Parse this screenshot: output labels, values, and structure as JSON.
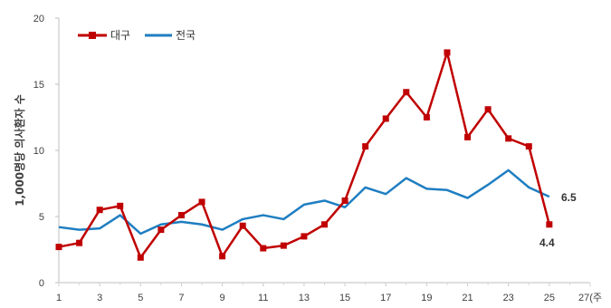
{
  "chart_data": {
    "type": "line",
    "ylabel": "1,000명당 의사환자 수",
    "xlabel": "",
    "x": [
      1,
      2,
      3,
      4,
      5,
      6,
      7,
      8,
      9,
      10,
      11,
      12,
      13,
      14,
      15,
      16,
      17,
      18,
      19,
      20,
      21,
      22,
      23,
      24,
      25
    ],
    "x_ticks": [
      "1",
      "3",
      "5",
      "7",
      "9",
      "11",
      "13",
      "15",
      "17",
      "19",
      "21",
      "23",
      "25",
      "27(주"
    ],
    "xlim": [
      1,
      27
    ],
    "ylim": [
      0,
      20
    ],
    "y_ticks": [
      "0",
      "5",
      "10",
      "15",
      "20"
    ],
    "grid": false,
    "legend": "top-left",
    "series": [
      {
        "name": "대구",
        "color": "#C00000",
        "marker": "square",
        "values": [
          2.7,
          3.0,
          5.5,
          5.8,
          1.9,
          4.0,
          5.1,
          6.1,
          2.0,
          4.3,
          2.6,
          2.8,
          3.5,
          4.4,
          6.2,
          10.3,
          12.4,
          14.4,
          12.5,
          17.4,
          11.0,
          13.1,
          10.9,
          10.3,
          4.4
        ]
      },
      {
        "name": "전국",
        "color": "#1F7EC1",
        "marker": "none",
        "values": [
          4.2,
          4.0,
          4.1,
          5.1,
          3.7,
          4.4,
          4.6,
          4.4,
          4.0,
          4.8,
          5.1,
          4.8,
          5.9,
          6.2,
          5.7,
          7.2,
          6.7,
          7.9,
          7.1,
          7.0,
          6.4,
          7.4,
          8.5,
          7.2,
          6.5
        ]
      }
    ],
    "annotations": [
      {
        "text": "6.5",
        "series": "전국"
      },
      {
        "text": "4.4",
        "series": "대구"
      }
    ]
  }
}
